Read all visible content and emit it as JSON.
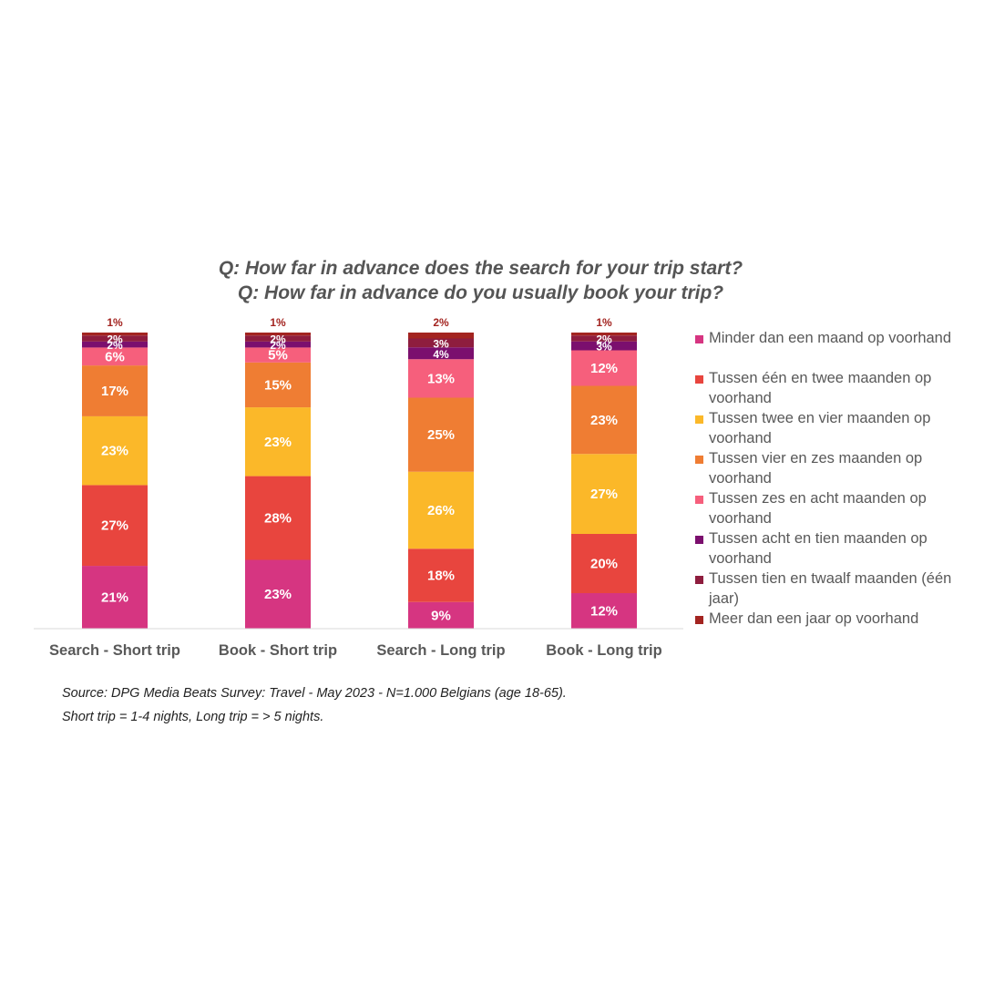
{
  "titles": {
    "line1": "Q: How far in advance does the search for your trip start?",
    "line2": "Q: How far in advance do you usually book your trip?"
  },
  "source": {
    "line1": "Source: DPG Media Beats Survey: Travel - May 2023 - N=1.000 Belgians (age 18-65).",
    "line2": "Short trip = 1-4 nights, Long trip = > 5 nights."
  },
  "chart_data": {
    "type": "bar",
    "stacked": true,
    "stack_mode": "percent",
    "categories": [
      "Search - Short trip",
      "Book - Short trip",
      "Search - Long trip",
      "Book - Long trip"
    ],
    "ylim": [
      0,
      100
    ],
    "legend_position": "right",
    "series": [
      {
        "name": "Minder dan een maand op voorhand",
        "color": "#d63581",
        "values": [
          21,
          23,
          9,
          12
        ],
        "labels": [
          "21%",
          "23%",
          "9%",
          "12%"
        ],
        "label_color": "#ffffff"
      },
      {
        "name": "Tussen één en twee maanden op voorhand",
        "color": "#e8453e",
        "values": [
          27,
          28,
          18,
          20
        ],
        "labels": [
          "27%",
          "28%",
          "18%",
          "20%"
        ],
        "label_color": "#ffffff"
      },
      {
        "name": "Tussen twee en vier maanden op voorhand",
        "color": "#fbb829",
        "values": [
          23,
          23,
          26,
          27
        ],
        "labels": [
          "23%",
          "23%",
          "26%",
          "27%"
        ],
        "label_color": "#ffffff"
      },
      {
        "name": "Tussen vier en zes maanden op voorhand",
        "color": "#ef7d33",
        "values": [
          17,
          15,
          25,
          23
        ],
        "labels": [
          "17%",
          "15%",
          "25%",
          "23%"
        ],
        "label_color": "#ffffff"
      },
      {
        "name": "Tussen zes en acht maanden op voorhand",
        "color": "#f65f7c",
        "values": [
          6,
          5,
          13,
          12
        ],
        "labels": [
          "6%",
          "5%",
          "13%",
          "12%"
        ],
        "label_color": "#ffffff"
      },
      {
        "name": "Tussen acht en tien maanden op voorhand",
        "color": "#7b0f6e",
        "values": [
          2,
          2,
          4,
          3
        ],
        "labels": [
          "2%",
          "2%",
          "4%",
          "3%"
        ],
        "label_color": "#ffffff"
      },
      {
        "name": "Tussen tien en twaalf maanden (één jaar)",
        "color": "#8e1d3e",
        "values": [
          2,
          2,
          3,
          2
        ],
        "labels": [
          "2%",
          "2%",
          "3%",
          "2%"
        ],
        "label_color": "#ffffff"
      },
      {
        "name": "Meer dan een jaar op voorhand",
        "color": "#a32420",
        "values": [
          1,
          1,
          2,
          1
        ],
        "labels": [
          "1%",
          "1%",
          "2%",
          "1%"
        ],
        "label_color": "#a32420",
        "label_above": true
      }
    ]
  }
}
